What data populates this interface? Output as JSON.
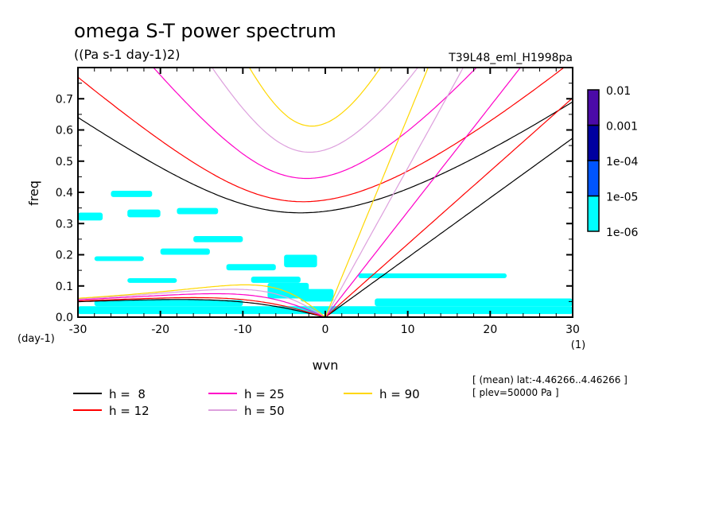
{
  "chart_data": {
    "type": "heatmap",
    "title": "omega S-T power spectrum",
    "subtitle": "((Pa s-1 day-1)2)",
    "run_label": "T39L48_eml_H1998pa",
    "xlabel": "wvn",
    "x_unit": "(1)",
    "ylabel": "freq",
    "y_unit": "(day-1)",
    "xlim": [
      -30,
      30
    ],
    "ylim": [
      0,
      0.8
    ],
    "xticks": [
      "-30",
      "-20",
      "-10",
      "0",
      "10",
      "20",
      "30"
    ],
    "yticks": [
      "0.0",
      "0.1",
      "0.2",
      "0.3",
      "0.4",
      "0.5",
      "0.6",
      "0.7"
    ],
    "colorbar": {
      "levels": [
        "1e-06",
        "1e-05",
        "1e-04",
        "0.001",
        "0.01"
      ],
      "colors": [
        "#00ffff",
        "#0055ff",
        "#0000a0",
        "#4b0aa8"
      ]
    },
    "shaded_level": "1e-06..1e-05",
    "shaded_regions": [
      {
        "wvn": [
          -30,
          30
        ],
        "freq": [
          0.01,
          0.035
        ]
      },
      {
        "wvn": [
          -28,
          -10
        ],
        "freq": [
          0.035,
          0.055
        ]
      },
      {
        "wvn": [
          6,
          30
        ],
        "freq": [
          0.035,
          0.06
        ]
      },
      {
        "wvn": [
          -7,
          -2
        ],
        "freq": [
          0.06,
          0.11
        ]
      },
      {
        "wvn": [
          4,
          22
        ],
        "freq": [
          0.125,
          0.14
        ]
      },
      {
        "wvn": [
          -30,
          -27
        ],
        "freq": [
          0.31,
          0.335
        ]
      },
      {
        "wvn": [
          -26,
          -21
        ],
        "freq": [
          0.385,
          0.405
        ]
      },
      {
        "wvn": [
          -24,
          -20
        ],
        "freq": [
          0.32,
          0.345
        ]
      },
      {
        "wvn": [
          -18,
          -13
        ],
        "freq": [
          0.33,
          0.35
        ]
      },
      {
        "wvn": [
          -28,
          -22
        ],
        "freq": [
          0.18,
          0.195
        ]
      },
      {
        "wvn": [
          -20,
          -14
        ],
        "freq": [
          0.2,
          0.22
        ]
      },
      {
        "wvn": [
          -12,
          -6
        ],
        "freq": [
          0.15,
          0.17
        ]
      },
      {
        "wvn": [
          -9,
          -3
        ],
        "freq": [
          0.11,
          0.13
        ]
      },
      {
        "wvn": [
          -16,
          -10
        ],
        "freq": [
          0.24,
          0.26
        ]
      },
      {
        "wvn": [
          -24,
          -18
        ],
        "freq": [
          0.11,
          0.125
        ]
      },
      {
        "wvn": [
          -5,
          -1
        ],
        "freq": [
          0.16,
          0.2
        ]
      },
      {
        "wvn": [
          -3,
          1
        ],
        "freq": [
          0.05,
          0.09
        ]
      }
    ],
    "series": [
      {
        "name": "h =  8",
        "h": 8,
        "color": "#000000"
      },
      {
        "name": "h = 12",
        "h": 12,
        "color": "#ff0000"
      },
      {
        "name": "h = 25",
        "h": 25,
        "color": "#ff00c8"
      },
      {
        "name": "h = 50",
        "h": 50,
        "color": "#dda0dd"
      },
      {
        "name": "h = 90",
        "h": 90,
        "color": "#ffd700"
      }
    ],
    "annotations": [
      "[ (mean) lat:-4.46266..4.46266 ]",
      "[ plev=50000 Pa ]"
    ],
    "grid": false
  }
}
